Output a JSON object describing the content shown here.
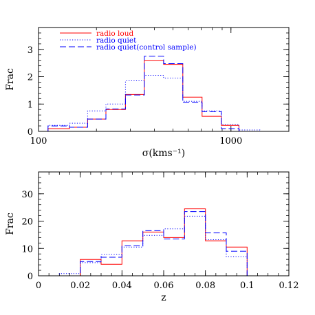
{
  "chart_data": [
    {
      "type": "histogram",
      "xscale": "log",
      "xlim": [
        100,
        2000
      ],
      "ylim": [
        0,
        3.8
      ],
      "xlabel": "σ(kms⁻¹)",
      "ylabel": "Frac",
      "xticks": [
        {
          "value": 100,
          "label": "100"
        },
        {
          "value": 1000,
          "label": "1000"
        }
      ],
      "yticks": [
        {
          "value": 0,
          "label": "0"
        },
        {
          "value": 1,
          "label": "1"
        },
        {
          "value": 2,
          "label": "2"
        },
        {
          "value": 3,
          "label": "3"
        }
      ],
      "bin_edges": [
        112,
        145,
        180,
        224,
        283,
        355,
        447,
        562,
        708,
        891,
        1100,
        1413
      ],
      "series": [
        {
          "name": "radio loud",
          "color": "#ff0000",
          "style": "solid",
          "values": [
            0.1,
            0.15,
            0.45,
            0.8,
            1.35,
            2.6,
            2.45,
            1.25,
            0.55,
            0.22,
            0.0
          ]
        },
        {
          "name": "radio quiet",
          "color": "#0000ff",
          "style": "dotted",
          "values": [
            0.22,
            0.3,
            0.75,
            1.0,
            1.85,
            2.05,
            1.95,
            1.1,
            0.75,
            0.25,
            0.05
          ]
        },
        {
          "name": "radio quiet(control sample)",
          "color": "#0000ff",
          "style": "dashed",
          "values": [
            0.2,
            0.15,
            0.45,
            0.82,
            1.33,
            2.75,
            2.48,
            1.05,
            0.72,
            0.1,
            0.0
          ]
        }
      ],
      "legend_position": "top-left"
    },
    {
      "type": "histogram",
      "xscale": "linear",
      "xlim": [
        0,
        0.12
      ],
      "ylim": [
        0,
        38
      ],
      "xlabel": "z",
      "ylabel": "Frac",
      "xticks": [
        {
          "value": 0,
          "label": "0"
        },
        {
          "value": 0.02,
          "label": "0.02"
        },
        {
          "value": 0.04,
          "label": "0.04"
        },
        {
          "value": 0.06,
          "label": "0.06"
        },
        {
          "value": 0.08,
          "label": "0.08"
        },
        {
          "value": 0.1,
          "label": "0.1"
        },
        {
          "value": 0.12,
          "label": "0.12"
        }
      ],
      "yticks": [
        {
          "value": 0,
          "label": "0"
        },
        {
          "value": 10,
          "label": "10"
        },
        {
          "value": 20,
          "label": "20"
        },
        {
          "value": 30,
          "label": "30"
        }
      ],
      "bin_edges": [
        0.0,
        0.01,
        0.02,
        0.03,
        0.04,
        0.05,
        0.06,
        0.07,
        0.08,
        0.09,
        0.1
      ],
      "series": [
        {
          "name": "radio loud",
          "color": "#ff0000",
          "style": "solid",
          "values": [
            0.0,
            0.0,
            6.0,
            4.2,
            12.8,
            16.0,
            14.0,
            24.5,
            12.8,
            10.5
          ]
        },
        {
          "name": "radio quiet",
          "color": "#0000ff",
          "style": "dotted",
          "values": [
            0.0,
            0.8,
            4.8,
            7.8,
            10.5,
            14.8,
            17.2,
            21.8,
            13.2,
            7.0
          ]
        },
        {
          "name": "radio quiet(control sample)",
          "color": "#0000ff",
          "style": "dashed",
          "values": [
            0.0,
            0.0,
            5.2,
            6.8,
            11.0,
            16.5,
            13.5,
            23.5,
            15.7,
            9.0
          ]
        }
      ]
    }
  ]
}
